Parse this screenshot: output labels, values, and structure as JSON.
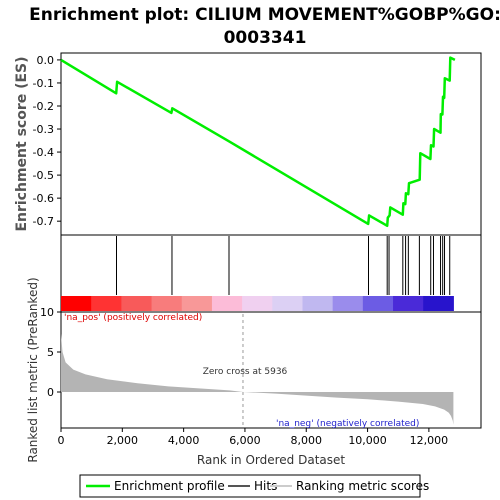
{
  "chart_data": [
    {
      "type": "line",
      "title_line1": "Enrichment plot: CILIUM MOVEMENT%GOBP%GO:",
      "title_line2": "0003341",
      "ylabel": "Enrichment score (ES)",
      "ylim": [
        -0.76,
        0.03
      ],
      "yticks": [
        0.0,
        -0.1,
        -0.2,
        -0.3,
        -0.4,
        -0.5,
        -0.6,
        -0.7
      ],
      "ytick_labels": [
        "0.0",
        "-0.1",
        "-0.2",
        "-0.3",
        "-0.4",
        "-0.5",
        "-0.6",
        "-0.7"
      ],
      "series": [
        {
          "name": "Enrichment profile",
          "color": "#00ee00",
          "x": [
            0,
            1800,
            1830,
            3600,
            3630,
            5500,
            10020,
            10050,
            10640,
            10660,
            10720,
            10740,
            11150,
            11170,
            11230,
            11250,
            11330,
            11350,
            11700,
            11720,
            12050,
            12070,
            12150,
            12170,
            12380,
            12390,
            12440,
            12460,
            12500,
            12520,
            12680,
            12700,
            12850
          ],
          "y": [
            0.0,
            -0.145,
            -0.095,
            -0.23,
            -0.21,
            -0.355,
            -0.712,
            -0.675,
            -0.72,
            -0.685,
            -0.675,
            -0.64,
            -0.672,
            -0.622,
            -0.626,
            -0.579,
            -0.583,
            -0.535,
            -0.52,
            -0.405,
            -0.43,
            -0.37,
            -0.376,
            -0.3,
            -0.316,
            -0.235,
            -0.237,
            -0.16,
            -0.165,
            -0.08,
            -0.09,
            0.01,
            0.0
          ]
        }
      ]
    },
    {
      "type": "hits",
      "hits_x": [
        1810,
        3620,
        5480,
        10030,
        10640,
        10700,
        11150,
        11240,
        11330,
        11690,
        12060,
        12150,
        12380,
        12450,
        12510,
        12680
      ],
      "hit_color": "#000000",
      "colorbar": [
        "#ff0000",
        "#ff3333",
        "#f85a5a",
        "#f87c7c",
        "#f89898",
        "#fcbcd8",
        "#f0d0f0",
        "#dcd0f4",
        "#c0b8f0",
        "#9a8cec",
        "#6c5ce4",
        "#4a2ad8",
        "#2814cc"
      ]
    },
    {
      "type": "area",
      "ylabel": "Ranked list metric (PreRanked)",
      "xlabel": "Rank in Ordered Dataset",
      "ylim": [
        -4.5,
        10
      ],
      "yticks": [
        10,
        5,
        0
      ],
      "ytick_labels": [
        "10",
        "5",
        "0"
      ],
      "xticks": [
        0,
        2000,
        4000,
        6000,
        8000,
        10000,
        12000
      ],
      "xtick_labels": [
        "0",
        "2,000",
        "4,000",
        "6,000",
        "8,000",
        "10,000",
        "12,000"
      ],
      "xlim": [
        0,
        13700
      ],
      "x": [
        0,
        50,
        150,
        400,
        800,
        1500,
        2500,
        3500,
        4500,
        5500,
        5936,
        7000,
        8000,
        9000,
        10000,
        11000,
        11800,
        12200,
        12500,
        12650,
        12720,
        12780,
        12800
      ],
      "y": [
        7.3,
        5.0,
        3.7,
        2.8,
        2.2,
        1.6,
        1.1,
        0.7,
        0.45,
        0.2,
        0.0,
        -0.2,
        -0.45,
        -0.7,
        -0.9,
        -1.2,
        -1.5,
        -1.8,
        -2.2,
        -2.6,
        -3.0,
        -3.6,
        -4.1
      ],
      "fill_color": "#b4b4b4",
      "zero_cross_x": 5936,
      "zero_cross_label": "Zero cross at 5936",
      "pos_label": "'na_pos' (positively correlated)",
      "neg_label": "'na_neg' (negatively correlated)"
    }
  ],
  "legend": {
    "items": [
      {
        "label": "Enrichment profile",
        "color": "#00ee00"
      },
      {
        "label": "Hits",
        "color": "#555555"
      },
      {
        "label": "Ranking metric scores",
        "color": "#cccccc"
      }
    ]
  }
}
